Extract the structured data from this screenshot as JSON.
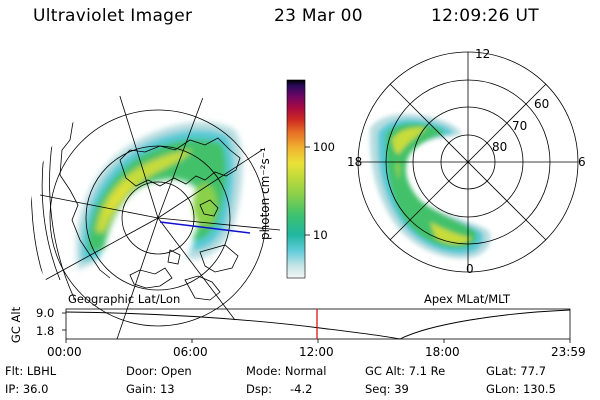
{
  "header": {
    "instrument": "Ultraviolet Imager",
    "date": "23 Mar 00",
    "time": "12:09:26 UT"
  },
  "colorbar": {
    "unit_label": "photon cm⁻²s⁻¹",
    "ticks": [
      "100",
      "10"
    ],
    "colors": [
      "#e8f2f2",
      "#b8dde0",
      "#59c9d6",
      "#1db89c",
      "#43c16a",
      "#8ad04a",
      "#c8dc3a",
      "#eae238",
      "#f0b030",
      "#e56a24",
      "#cc2a22",
      "#a80a42",
      "#6a0664",
      "#2a0a5a",
      "#000000"
    ]
  },
  "left_map": {
    "label": "Geographic Lat/Lon"
  },
  "right_map": {
    "label": "Apex MLat/MLT",
    "mlt_labels": {
      "top": "12",
      "left": "18",
      "right": "6",
      "bottom": "0"
    },
    "lat_labels": [
      "60",
      "70",
      "80"
    ]
  },
  "timeline": {
    "axis_label": "GC Alt",
    "y_ticks": [
      "9.0",
      "1.8"
    ],
    "x_ticks": [
      "00:00",
      "06:00",
      "12:00",
      "18:00",
      "23:59"
    ],
    "marker_color": "#e00000"
  },
  "params": {
    "filter": "Flt: LBHL",
    "ip": "IP: 36.0",
    "door": "Door: Open",
    "gain": "Gain: 13",
    "mode": "Mode: Normal",
    "dsp_label": "Dsp:",
    "dsp_value": "-4.2",
    "gc_alt": "GC Alt: 7.1 Re",
    "seq": "Seq: 39",
    "glat": "GLat: 77.7",
    "glon": "GLon: 130.5"
  }
}
